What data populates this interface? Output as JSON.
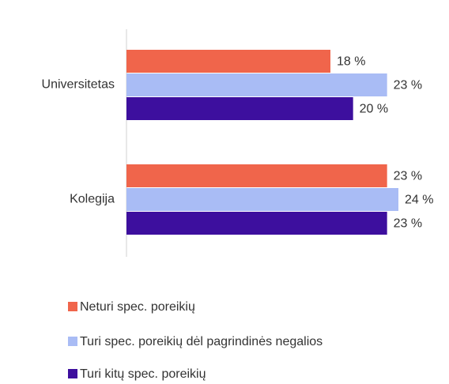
{
  "chart_data": {
    "type": "hbar",
    "categories": [
      "Universitetas",
      "Kolegija"
    ],
    "series": [
      {
        "name": "Neturi spec. poreikių",
        "color": "#f0654b",
        "values": [
          18,
          23
        ],
        "value_labels": [
          "18 %",
          "23 %"
        ]
      },
      {
        "name": "Turi spec. poreikių dėl pagrindinės negalios",
        "color": "#a9bcf5",
        "values": [
          23,
          24
        ],
        "value_labels": [
          "23 %",
          "24 %"
        ]
      },
      {
        "name": "Turi kitų spec. poreikių",
        "color": "#3d0f9e",
        "values": [
          20,
          23
        ],
        "value_labels": [
          "20 %",
          "23 %"
        ]
      }
    ],
    "legend": "bottom"
  }
}
